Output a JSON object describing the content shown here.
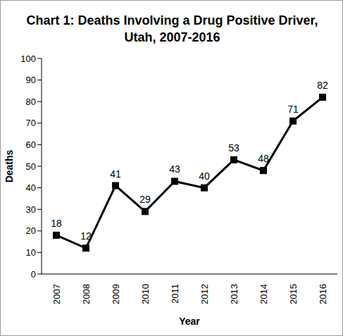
{
  "chart_data": {
    "type": "line",
    "title": "Chart 1: Deaths Involving a Drug Positive Driver, Utah, 2007-2016",
    "x_label": "Year",
    "y_label": "Deaths",
    "categories": [
      "2007",
      "2008",
      "2009",
      "2010",
      "2011",
      "2012",
      "2013",
      "2014",
      "2015",
      "2016"
    ],
    "values": [
      18,
      12,
      41,
      29,
      43,
      40,
      53,
      48,
      71,
      82
    ],
    "color": "#000000",
    "marker": "square",
    "ylim": [
      0,
      100
    ],
    "yticks": [
      0,
      10,
      20,
      30,
      40,
      50,
      60,
      70,
      80,
      90,
      100
    ],
    "grid": false,
    "data_labels": true
  }
}
